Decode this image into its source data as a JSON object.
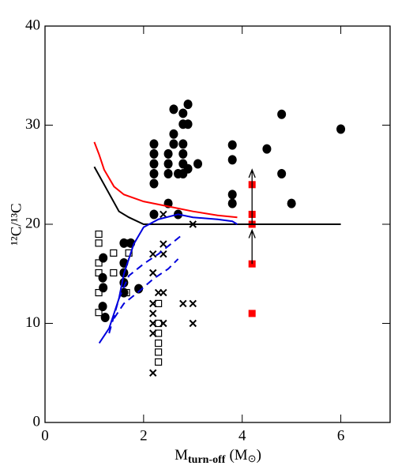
{
  "chart_data": {
    "type": "scatter",
    "ylabel": "¹²C/¹³C",
    "xlabel": [
      "M",
      "turn-off",
      "(M",
      "⊙",
      ")"
    ],
    "xlim": [
      0,
      7
    ],
    "ylim": [
      0,
      40
    ],
    "xticks": [
      0,
      2,
      4,
      6
    ],
    "yticks": [
      0,
      10,
      20,
      30,
      40
    ],
    "series": [
      {
        "marker": "circle",
        "color": "#000000",
        "x": [
          1.18,
          1.17,
          1.18,
          1.17,
          1.22,
          1.6,
          1.6,
          1.6,
          1.6,
          1.6,
          1.74,
          1.9,
          2.21,
          2.21,
          2.21,
          2.21,
          2.21,
          2.21,
          2.5,
          2.5,
          2.5,
          2.5,
          2.61,
          2.61,
          2.61,
          2.8,
          2.9,
          2.8,
          2.8,
          2.8,
          2.8,
          2.8,
          2.9,
          2.9,
          2.7,
          2.7,
          3.1,
          3.8,
          3.8,
          3.8,
          3.8,
          4.5,
          4.8,
          4.8,
          5.0,
          6.0
        ],
        "values": [
          16.6,
          14.6,
          13.6,
          11.7,
          10.6,
          18.1,
          16.1,
          15.1,
          14.1,
          13.1,
          18.1,
          13.5,
          28.1,
          27.1,
          26.1,
          25.1,
          24.1,
          21.0,
          27.1,
          26.1,
          25.1,
          22.1,
          31.6,
          29.1,
          28.1,
          31.2,
          32.1,
          30.1,
          28.1,
          27.1,
          26.1,
          25.1,
          30.1,
          25.6,
          25.1,
          21.0,
          26.1,
          28.0,
          26.5,
          23.0,
          22.1,
          27.6,
          31.1,
          25.1,
          22.1,
          29.6
        ]
      },
      {
        "marker": "square-open",
        "color": "#000000",
        "x": [
          1.09,
          1.09,
          1.39,
          1.09,
          1.09,
          1.39,
          1.7,
          1.7,
          1.09,
          1.09,
          1.65,
          2.3,
          2.3,
          2.3,
          2.3,
          2.3,
          2.3
        ],
        "values": [
          19,
          18.1,
          17.1,
          16.1,
          15.1,
          15.1,
          18.1,
          17.1,
          13.1,
          11.1,
          13.1,
          12.0,
          10.0,
          9.0,
          8.0,
          7.1,
          6.1
        ]
      },
      {
        "marker": "cross",
        "color": "#000000",
        "x": [
          2.19,
          2.19,
          2.19,
          2.19,
          2.19,
          2.19,
          2.19,
          2.4,
          2.4,
          2.4,
          2.4,
          2.3,
          2.4,
          2.8,
          3.0,
          3.0,
          3.0
        ],
        "values": [
          5.0,
          12.0,
          11.0,
          10.0,
          9.0,
          17.0,
          15.1,
          18,
          17,
          21,
          10,
          13.1,
          13.1,
          12,
          12,
          10,
          20
        ]
      },
      {
        "marker": "square",
        "color": "#ff0000",
        "x": [
          4.2,
          4.2,
          4.2,
          4.2,
          4.2
        ],
        "values": [
          24,
          21,
          20,
          16,
          11
        ]
      },
      {
        "marker": "line",
        "dash": false,
        "color": "#ff0000",
        "x": [
          1.0,
          1.1,
          1.2,
          1.4,
          1.6,
          2.0,
          2.5,
          3.0,
          3.5,
          3.9
        ],
        "values": [
          28.3,
          27,
          25.5,
          23.8,
          23,
          22.3,
          21.8,
          21.3,
          20.9,
          20.7
        ]
      },
      {
        "marker": "line",
        "dash": false,
        "color": "#000000",
        "x": [
          1.0,
          1.2,
          1.5,
          1.7,
          2.0,
          3,
          4,
          6
        ],
        "values": [
          25.8,
          24,
          21.3,
          20.7,
          20,
          20,
          20,
          20
        ]
      },
      {
        "marker": "line",
        "dash": false,
        "color": "#0000dd",
        "x": [
          1.1,
          1.3,
          1.5,
          1.6,
          1.8,
          2.0,
          2.3,
          2.7,
          3.0,
          3.5,
          3.8,
          3.9
        ],
        "values": [
          8,
          9.5,
          12.5,
          15,
          18,
          19.7,
          20.5,
          21,
          20.7,
          20.5,
          20.3,
          20.0
        ]
      },
      {
        "marker": "line",
        "dash": true,
        "color": "#0000dd",
        "x": [
          1.3,
          1.5,
          1.7,
          2.0,
          2.3,
          2.8
        ],
        "values": [
          9,
          12.5,
          14.8,
          16,
          17,
          19
        ]
      },
      {
        "marker": "line",
        "dash": true,
        "color": "#0000dd",
        "x": [
          1.4,
          1.6,
          1.9,
          2.2,
          2.5,
          2.7
        ],
        "values": [
          10.5,
          12,
          13.2,
          14.5,
          15.5,
          16.5
        ]
      }
    ],
    "arrows": [
      {
        "x": 4.2,
        "from": 20,
        "to": 25.5
      },
      {
        "x": 4.2,
        "from": 16,
        "to": 19.4
      }
    ]
  }
}
